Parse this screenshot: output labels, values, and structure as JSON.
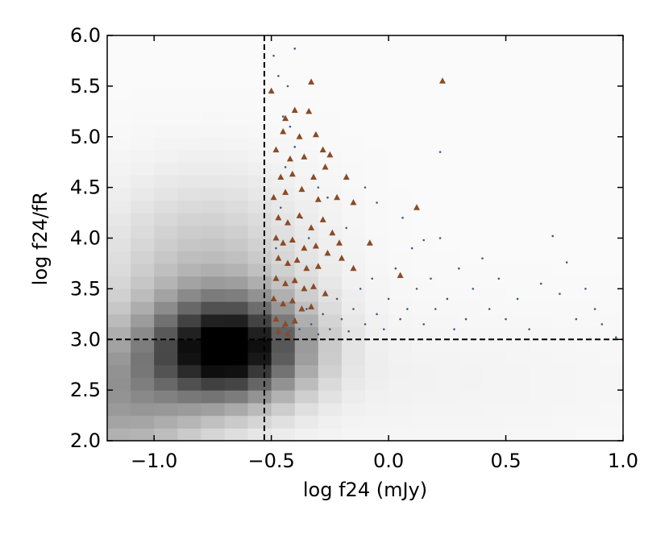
{
  "chart_data": {
    "type": "scatter",
    "title": "",
    "xlabel": "log f24 (mJy)",
    "ylabel": "log f24/fR",
    "xlim": [
      -1.2,
      1.0
    ],
    "ylim": [
      2.0,
      6.0
    ],
    "x_ticks": [
      -1.0,
      -0.5,
      0.0,
      0.5,
      1.0
    ],
    "x_tick_labels": [
      "−1.0",
      "−0.5",
      "0.0",
      "0.5",
      "1.0"
    ],
    "y_ticks": [
      2.0,
      2.5,
      3.0,
      3.5,
      4.0,
      4.5,
      5.0,
      5.5,
      6.0
    ],
    "y_tick_labels": [
      "2.0",
      "2.5",
      "3.0",
      "3.5",
      "4.0",
      "4.5",
      "5.0",
      "5.5",
      "6.0"
    ],
    "grid": false,
    "reference_lines": [
      {
        "orientation": "vertical",
        "value": -0.53,
        "style": "dashed"
      },
      {
        "orientation": "horizontal",
        "value": 3.0,
        "style": "dashed"
      }
    ],
    "background": {
      "type": "density-heatmap",
      "colormap": "greys",
      "peak": [
        -0.68,
        2.9
      ],
      "secondary_peak": [
        -0.78,
        3.7
      ]
    },
    "series": [
      {
        "marker": "dot",
        "color": "#3f5a86",
        "points": [
          [
            -0.47,
            3.05
          ],
          [
            -0.45,
            3.12
          ],
          [
            -0.42,
            3.08
          ],
          [
            -0.4,
            3.2
          ],
          [
            -0.38,
            3.1
          ],
          [
            -0.35,
            3.3
          ],
          [
            -0.33,
            3.15
          ],
          [
            -0.3,
            3.05
          ],
          [
            -0.28,
            3.25
          ],
          [
            -0.25,
            3.1
          ],
          [
            -0.22,
            3.4
          ],
          [
            -0.2,
            3.2
          ],
          [
            -0.17,
            3.08
          ],
          [
            -0.15,
            3.3
          ],
          [
            -0.12,
            3.5
          ],
          [
            -0.1,
            3.15
          ],
          [
            -0.07,
            3.6
          ],
          [
            -0.05,
            3.25
          ],
          [
            -0.02,
            3.1
          ],
          [
            0.0,
            3.4
          ],
          [
            0.03,
            3.7
          ],
          [
            0.05,
            3.2
          ],
          [
            0.08,
            3.3
          ],
          [
            0.1,
            3.9
          ],
          [
            0.12,
            3.5
          ],
          [
            0.15,
            3.15
          ],
          [
            0.18,
            3.6
          ],
          [
            0.2,
            3.3
          ],
          [
            0.22,
            4.0
          ],
          [
            0.25,
            3.4
          ],
          [
            0.28,
            3.1
          ],
          [
            0.3,
            3.7
          ],
          [
            0.33,
            3.2
          ],
          [
            0.36,
            3.5
          ],
          [
            0.4,
            3.8
          ],
          [
            0.43,
            3.3
          ],
          [
            0.47,
            3.6
          ],
          [
            0.5,
            3.2
          ],
          [
            0.55,
            3.4
          ],
          [
            0.6,
            3.1
          ],
          [
            0.65,
            3.55
          ],
          [
            0.7,
            4.02
          ],
          [
            0.73,
            3.45
          ],
          [
            0.76,
            3.76
          ],
          [
            0.8,
            3.2
          ],
          [
            0.84,
            3.5
          ],
          [
            0.88,
            3.3
          ],
          [
            0.91,
            3.15
          ],
          [
            0.97,
            3.02
          ],
          [
            -0.48,
            3.9
          ],
          [
            -0.46,
            4.3
          ],
          [
            -0.44,
            4.7
          ],
          [
            -0.42,
            5.1
          ],
          [
            -0.4,
            4.9
          ],
          [
            -0.37,
            4.2
          ],
          [
            -0.34,
            4.0
          ],
          [
            -0.3,
            4.5
          ],
          [
            -0.26,
            4.4
          ],
          [
            -0.18,
            4.1
          ],
          [
            -0.1,
            4.5
          ],
          [
            -0.05,
            4.35
          ],
          [
            0.06,
            4.2
          ],
          [
            0.15,
            3.98
          ],
          [
            0.22,
            4.85
          ],
          [
            -0.49,
            5.8
          ],
          [
            -0.47,
            5.6
          ],
          [
            -0.4,
            5.87
          ],
          [
            -0.45,
            5.2
          ],
          [
            -0.43,
            5.5
          ]
        ]
      },
      {
        "marker": "triangle",
        "color": "#8b4a25",
        "points": [
          [
            -0.5,
            5.45
          ],
          [
            -0.44,
            5.18
          ],
          [
            -0.4,
            5.26
          ],
          [
            -0.33,
            5.54
          ],
          [
            -0.34,
            5.25
          ],
          [
            -0.48,
            4.87
          ],
          [
            -0.45,
            5.05
          ],
          [
            -0.38,
            5.0
          ],
          [
            -0.31,
            5.02
          ],
          [
            -0.28,
            4.87
          ],
          [
            -0.42,
            4.78
          ],
          [
            -0.36,
            4.8
          ],
          [
            -0.25,
            4.82
          ],
          [
            -0.46,
            4.6
          ],
          [
            -0.41,
            4.63
          ],
          [
            -0.32,
            4.6
          ],
          [
            -0.27,
            4.7
          ],
          [
            -0.18,
            4.6
          ],
          [
            -0.49,
            4.4
          ],
          [
            -0.44,
            4.45
          ],
          [
            -0.37,
            4.48
          ],
          [
            -0.3,
            4.38
          ],
          [
            -0.22,
            4.4
          ],
          [
            -0.15,
            4.35
          ],
          [
            -0.47,
            4.2
          ],
          [
            -0.43,
            4.15
          ],
          [
            -0.38,
            4.22
          ],
          [
            -0.33,
            4.1
          ],
          [
            -0.28,
            4.18
          ],
          [
            -0.24,
            4.05
          ],
          [
            -0.48,
            4.0
          ],
          [
            -0.45,
            3.95
          ],
          [
            -0.41,
            3.98
          ],
          [
            -0.36,
            3.9
          ],
          [
            -0.31,
            3.92
          ],
          [
            -0.26,
            3.85
          ],
          [
            -0.21,
            3.95
          ],
          [
            -0.47,
            3.8
          ],
          [
            -0.43,
            3.75
          ],
          [
            -0.39,
            3.78
          ],
          [
            -0.35,
            3.7
          ],
          [
            -0.3,
            3.72
          ],
          [
            -0.2,
            3.8
          ],
          [
            -0.48,
            3.6
          ],
          [
            -0.44,
            3.55
          ],
          [
            -0.4,
            3.58
          ],
          [
            -0.36,
            3.5
          ],
          [
            -0.32,
            3.52
          ],
          [
            -0.27,
            3.45
          ],
          [
            -0.49,
            3.4
          ],
          [
            -0.45,
            3.35
          ],
          [
            -0.41,
            3.38
          ],
          [
            -0.37,
            3.3
          ],
          [
            -0.33,
            3.32
          ],
          [
            -0.48,
            3.2
          ],
          [
            -0.44,
            3.15
          ],
          [
            -0.4,
            3.18
          ],
          [
            -0.47,
            3.08
          ],
          [
            -0.43,
            3.05
          ],
          [
            0.12,
            4.3
          ],
          [
            0.23,
            5.55
          ],
          [
            -0.08,
            3.95
          ],
          [
            0.05,
            3.63
          ],
          [
            -0.15,
            3.7
          ]
        ]
      }
    ]
  }
}
